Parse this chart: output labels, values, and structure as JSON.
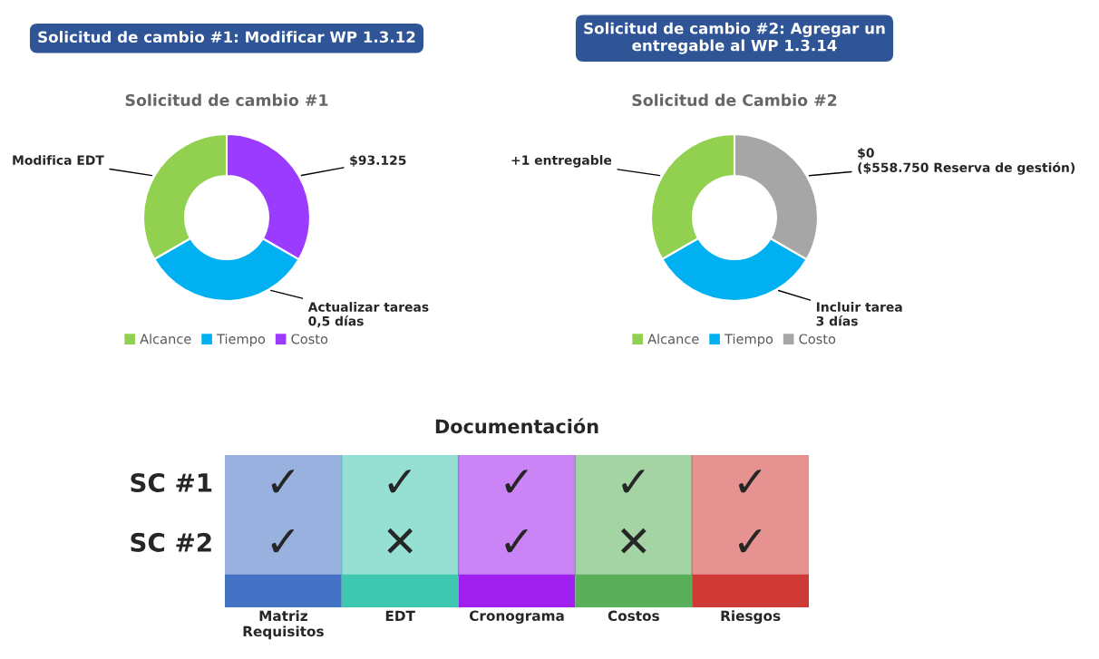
{
  "chart_data": [
    {
      "type": "donut",
      "title": "Solicitud de cambio #1: Modificar WP 1.3.12",
      "subtitle": "Solicitud de cambio #1",
      "categories": [
        "Alcance",
        "Tiempo",
        "Costo"
      ],
      "values": [
        33.33,
        33.33,
        33.34
      ],
      "colors": [
        "#92d050",
        "#00b0f0",
        "#9b3bff"
      ],
      "annotations": [
        {
          "text": "Modifica EDT",
          "x": "Alcance"
        },
        {
          "text": "Actualizar tareas\n0,5 días",
          "x": "Tiempo"
        },
        {
          "text": "$93.125",
          "x": "Costo"
        }
      ],
      "legend": "bottom"
    },
    {
      "type": "donut",
      "title": "Solicitud de cambio #2: Agregar un\nentregable al WP 1.3.14",
      "subtitle": "Solicitud de Cambio #2",
      "categories": [
        "Alcance",
        "Tiempo",
        "Costo"
      ],
      "values": [
        33.33,
        33.33,
        33.34
      ],
      "colors": [
        "#92d050",
        "#00b0f0",
        "#a6a6a6"
      ],
      "annotations": [
        {
          "text": "+1 entregable",
          "x": "Alcance"
        },
        {
          "text": "Incluir tarea\n3 días",
          "x": "Tiempo"
        },
        {
          "text": "$0\n($558.750 Reserva de gestión)",
          "x": "Costo"
        }
      ],
      "legend": "bottom"
    },
    {
      "type": "other",
      "title": "Documentación",
      "categories": [
        "Matriz\nRequisitos",
        "EDT",
        "Cronograma",
        "Costos",
        "Riesgos"
      ],
      "y_categories": [
        "SC #1",
        "SC #2"
      ],
      "cell_labels": [
        [
          "✓",
          "✓",
          "✓",
          "✓",
          "✓"
        ],
        [
          "✓",
          "✕",
          "✓",
          "✕",
          "✓"
        ]
      ],
      "colors": [
        "#4472c4",
        "#3fc8b0",
        "#a020f0",
        "#5ab05a",
        "#d03a36"
      ]
    }
  ]
}
